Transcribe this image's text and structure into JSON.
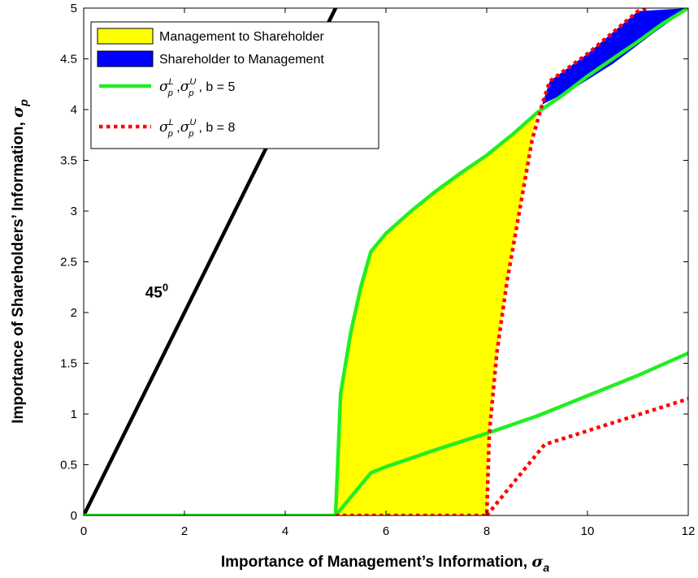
{
  "chart_data": {
    "type": "line",
    "xlabel": "Importance of Management’s Information, ",
    "xlabel_symbol": "σ",
    "xlabel_sub": "a",
    "ylabel": "Importance of Shareholders’ Information, ",
    "ylabel_symbol": "σ",
    "ylabel_sub": "p",
    "xlim": [
      0,
      12
    ],
    "ylim": [
      0,
      5
    ],
    "xticks": [
      "0",
      "2",
      "4",
      "6",
      "8",
      "10",
      "12"
    ],
    "yticks": [
      "0",
      "0.5",
      "1",
      "1.5",
      "2",
      "2.5",
      "3",
      "3.5",
      "4",
      "4.5",
      "5"
    ],
    "annotation": {
      "text": "45",
      "sup": "0",
      "x": 1.45,
      "y": 2.15
    },
    "legend": {
      "position": "top-left",
      "entries": [
        {
          "label": "Management to Shareholder",
          "kind": "patch",
          "color": "#ffff00"
        },
        {
          "label": "Shareholder to Management",
          "kind": "patch",
          "color": "#0000ff"
        },
        {
          "label": ", b = 5",
          "kind": "line",
          "color": "#22ee22",
          "style": "solid"
        },
        {
          "label": ", b = 8",
          "kind": "line",
          "color": "#ff0000",
          "style": "dotted"
        }
      ]
    },
    "regions": [
      {
        "name": "Management to Shareholder",
        "color": "#ffff00",
        "polygon": [
          [
            5,
            0
          ],
          [
            5.1,
            1.2
          ],
          [
            5.3,
            1.8
          ],
          [
            5.5,
            2.25
          ],
          [
            5.7,
            2.6
          ],
          [
            6,
            2.78
          ],
          [
            6.5,
            3.0
          ],
          [
            7,
            3.2
          ],
          [
            7.5,
            3.38
          ],
          [
            8,
            3.55
          ],
          [
            8.5,
            3.75
          ],
          [
            9,
            3.97
          ],
          [
            8.9,
            3.7
          ],
          [
            8.65,
            3.0
          ],
          [
            8.4,
            2.3
          ],
          [
            8.2,
            1.6
          ],
          [
            8.05,
            0.8
          ],
          [
            8,
            0
          ]
        ]
      },
      {
        "name": "Shareholder to Management",
        "color": "#0000ff",
        "polygon": [
          [
            9.1,
            4.05
          ],
          [
            9.25,
            4.28
          ],
          [
            10,
            4.55
          ],
          [
            11,
            4.97
          ],
          [
            12,
            5
          ],
          [
            11.3,
            4.75
          ],
          [
            10.5,
            4.45
          ],
          [
            9.7,
            4.2
          ]
        ]
      }
    ],
    "series": [
      {
        "role": "45-degree line",
        "color": "#000000",
        "style": "solid",
        "width": 4.5,
        "x": [
          0,
          5
        ],
        "y": [
          0,
          5
        ]
      },
      {
        "role": "b5 upper",
        "color": "#22ee22",
        "style": "solid",
        "width": 4.5,
        "x": [
          0,
          5,
          5.1,
          5.3,
          5.5,
          5.7,
          6,
          6.5,
          7,
          7.5,
          8,
          8.5,
          9,
          9.5,
          10,
          10.5,
          11,
          11.5,
          12
        ],
        "y": [
          0,
          0,
          1.2,
          1.8,
          2.25,
          2.6,
          2.78,
          3.0,
          3.2,
          3.38,
          3.55,
          3.75,
          3.97,
          4.14,
          4.33,
          4.5,
          4.67,
          4.85,
          5.0
        ]
      },
      {
        "role": "b5 lower",
        "color": "#22ee22",
        "style": "solid",
        "width": 4.5,
        "x": [
          5,
          5.7,
          6,
          7,
          8,
          9,
          10,
          11,
          12
        ],
        "y": [
          0,
          0.42,
          0.48,
          0.65,
          0.81,
          0.98,
          1.18,
          1.38,
          1.6
        ]
      },
      {
        "role": "b8 upper",
        "color": "#ff0000",
        "style": "dotted",
        "width": 4.5,
        "x": [
          5,
          8,
          8.05,
          8.2,
          8.4,
          8.65,
          8.9,
          9.1,
          9.25,
          10,
          11,
          11.2
        ],
        "y": [
          0,
          0,
          0.8,
          1.6,
          2.3,
          3.0,
          3.7,
          4.05,
          4.28,
          4.55,
          4.97,
          5.0
        ]
      },
      {
        "role": "b8 lower",
        "color": "#ff0000",
        "style": "dotted",
        "width": 4.5,
        "x": [
          8,
          9.15,
          12
        ],
        "y": [
          0,
          0.7,
          1.15
        ]
      }
    ],
    "grid": false
  }
}
